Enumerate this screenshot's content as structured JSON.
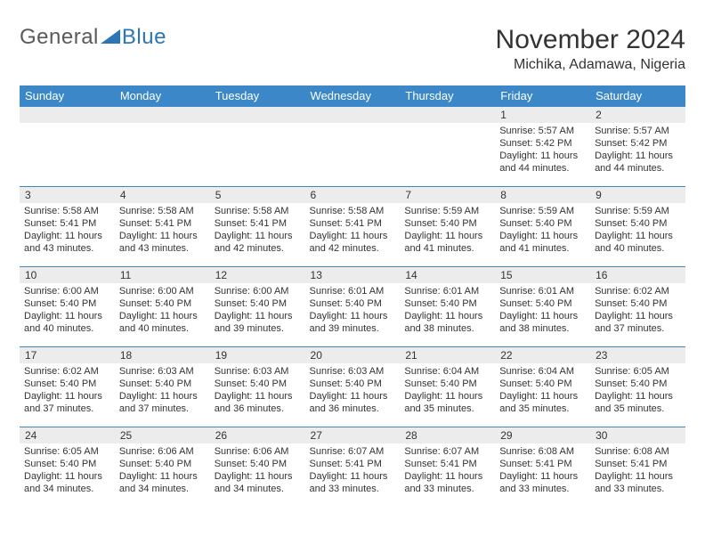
{
  "logo": {
    "text1": "General",
    "text2": "Blue",
    "tri_color": "#2a76b8"
  },
  "header": {
    "month_title": "November 2024",
    "location": "Michika, Adamawa, Nigeria"
  },
  "style": {
    "accent": "#3b87c8",
    "daynum_bg": "#ececec",
    "row_border": "#3b87c8",
    "body_font_size": 11,
    "header_font_size": 13
  },
  "day_labels": [
    "Sunday",
    "Monday",
    "Tuesday",
    "Wednesday",
    "Thursday",
    "Friday",
    "Saturday"
  ],
  "weeks": [
    [
      {
        "n": "",
        "sunrise": "",
        "sunset": "",
        "daylight": ""
      },
      {
        "n": "",
        "sunrise": "",
        "sunset": "",
        "daylight": ""
      },
      {
        "n": "",
        "sunrise": "",
        "sunset": "",
        "daylight": ""
      },
      {
        "n": "",
        "sunrise": "",
        "sunset": "",
        "daylight": ""
      },
      {
        "n": "",
        "sunrise": "",
        "sunset": "",
        "daylight": ""
      },
      {
        "n": "1",
        "sunrise": "Sunrise: 5:57 AM",
        "sunset": "Sunset: 5:42 PM",
        "daylight": "Daylight: 11 hours and 44 minutes."
      },
      {
        "n": "2",
        "sunrise": "Sunrise: 5:57 AM",
        "sunset": "Sunset: 5:42 PM",
        "daylight": "Daylight: 11 hours and 44 minutes."
      }
    ],
    [
      {
        "n": "3",
        "sunrise": "Sunrise: 5:58 AM",
        "sunset": "Sunset: 5:41 PM",
        "daylight": "Daylight: 11 hours and 43 minutes."
      },
      {
        "n": "4",
        "sunrise": "Sunrise: 5:58 AM",
        "sunset": "Sunset: 5:41 PM",
        "daylight": "Daylight: 11 hours and 43 minutes."
      },
      {
        "n": "5",
        "sunrise": "Sunrise: 5:58 AM",
        "sunset": "Sunset: 5:41 PM",
        "daylight": "Daylight: 11 hours and 42 minutes."
      },
      {
        "n": "6",
        "sunrise": "Sunrise: 5:58 AM",
        "sunset": "Sunset: 5:41 PM",
        "daylight": "Daylight: 11 hours and 42 minutes."
      },
      {
        "n": "7",
        "sunrise": "Sunrise: 5:59 AM",
        "sunset": "Sunset: 5:40 PM",
        "daylight": "Daylight: 11 hours and 41 minutes."
      },
      {
        "n": "8",
        "sunrise": "Sunrise: 5:59 AM",
        "sunset": "Sunset: 5:40 PM",
        "daylight": "Daylight: 11 hours and 41 minutes."
      },
      {
        "n": "9",
        "sunrise": "Sunrise: 5:59 AM",
        "sunset": "Sunset: 5:40 PM",
        "daylight": "Daylight: 11 hours and 40 minutes."
      }
    ],
    [
      {
        "n": "10",
        "sunrise": "Sunrise: 6:00 AM",
        "sunset": "Sunset: 5:40 PM",
        "daylight": "Daylight: 11 hours and 40 minutes."
      },
      {
        "n": "11",
        "sunrise": "Sunrise: 6:00 AM",
        "sunset": "Sunset: 5:40 PM",
        "daylight": "Daylight: 11 hours and 40 minutes."
      },
      {
        "n": "12",
        "sunrise": "Sunrise: 6:00 AM",
        "sunset": "Sunset: 5:40 PM",
        "daylight": "Daylight: 11 hours and 39 minutes."
      },
      {
        "n": "13",
        "sunrise": "Sunrise: 6:01 AM",
        "sunset": "Sunset: 5:40 PM",
        "daylight": "Daylight: 11 hours and 39 minutes."
      },
      {
        "n": "14",
        "sunrise": "Sunrise: 6:01 AM",
        "sunset": "Sunset: 5:40 PM",
        "daylight": "Daylight: 11 hours and 38 minutes."
      },
      {
        "n": "15",
        "sunrise": "Sunrise: 6:01 AM",
        "sunset": "Sunset: 5:40 PM",
        "daylight": "Daylight: 11 hours and 38 minutes."
      },
      {
        "n": "16",
        "sunrise": "Sunrise: 6:02 AM",
        "sunset": "Sunset: 5:40 PM",
        "daylight": "Daylight: 11 hours and 37 minutes."
      }
    ],
    [
      {
        "n": "17",
        "sunrise": "Sunrise: 6:02 AM",
        "sunset": "Sunset: 5:40 PM",
        "daylight": "Daylight: 11 hours and 37 minutes."
      },
      {
        "n": "18",
        "sunrise": "Sunrise: 6:03 AM",
        "sunset": "Sunset: 5:40 PM",
        "daylight": "Daylight: 11 hours and 37 minutes."
      },
      {
        "n": "19",
        "sunrise": "Sunrise: 6:03 AM",
        "sunset": "Sunset: 5:40 PM",
        "daylight": "Daylight: 11 hours and 36 minutes."
      },
      {
        "n": "20",
        "sunrise": "Sunrise: 6:03 AM",
        "sunset": "Sunset: 5:40 PM",
        "daylight": "Daylight: 11 hours and 36 minutes."
      },
      {
        "n": "21",
        "sunrise": "Sunrise: 6:04 AM",
        "sunset": "Sunset: 5:40 PM",
        "daylight": "Daylight: 11 hours and 35 minutes."
      },
      {
        "n": "22",
        "sunrise": "Sunrise: 6:04 AM",
        "sunset": "Sunset: 5:40 PM",
        "daylight": "Daylight: 11 hours and 35 minutes."
      },
      {
        "n": "23",
        "sunrise": "Sunrise: 6:05 AM",
        "sunset": "Sunset: 5:40 PM",
        "daylight": "Daylight: 11 hours and 35 minutes."
      }
    ],
    [
      {
        "n": "24",
        "sunrise": "Sunrise: 6:05 AM",
        "sunset": "Sunset: 5:40 PM",
        "daylight": "Daylight: 11 hours and 34 minutes."
      },
      {
        "n": "25",
        "sunrise": "Sunrise: 6:06 AM",
        "sunset": "Sunset: 5:40 PM",
        "daylight": "Daylight: 11 hours and 34 minutes."
      },
      {
        "n": "26",
        "sunrise": "Sunrise: 6:06 AM",
        "sunset": "Sunset: 5:40 PM",
        "daylight": "Daylight: 11 hours and 34 minutes."
      },
      {
        "n": "27",
        "sunrise": "Sunrise: 6:07 AM",
        "sunset": "Sunset: 5:41 PM",
        "daylight": "Daylight: 11 hours and 33 minutes."
      },
      {
        "n": "28",
        "sunrise": "Sunrise: 6:07 AM",
        "sunset": "Sunset: 5:41 PM",
        "daylight": "Daylight: 11 hours and 33 minutes."
      },
      {
        "n": "29",
        "sunrise": "Sunrise: 6:08 AM",
        "sunset": "Sunset: 5:41 PM",
        "daylight": "Daylight: 11 hours and 33 minutes."
      },
      {
        "n": "30",
        "sunrise": "Sunrise: 6:08 AM",
        "sunset": "Sunset: 5:41 PM",
        "daylight": "Daylight: 11 hours and 33 minutes."
      }
    ]
  ]
}
